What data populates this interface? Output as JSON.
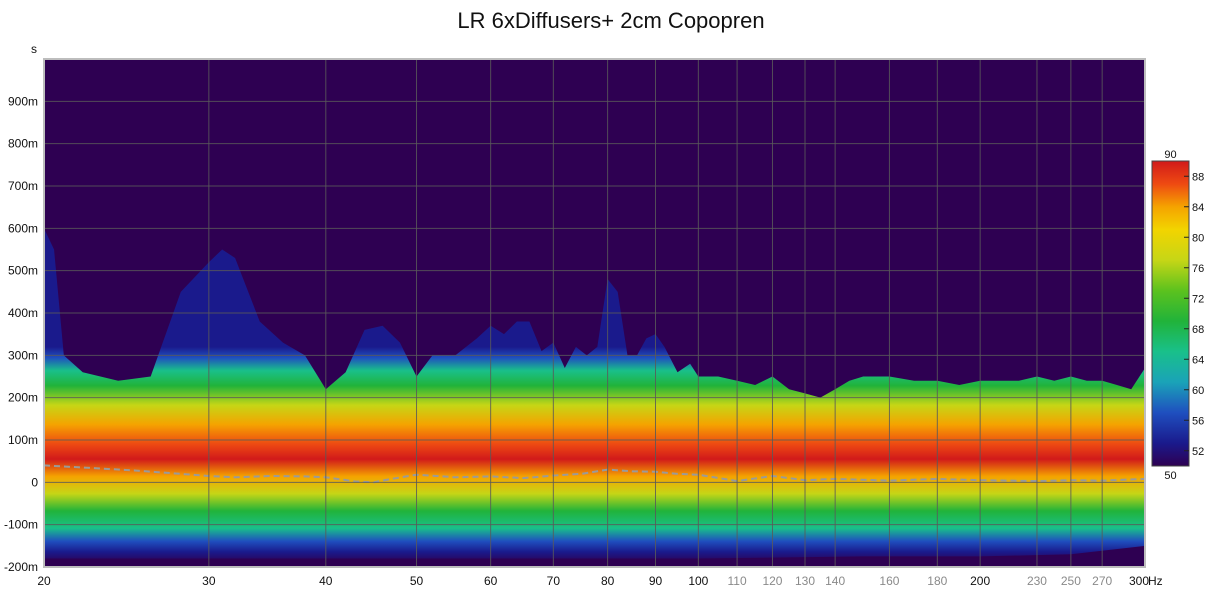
{
  "chart_data": {
    "type": "heatmap",
    "title": "LR 6xDiffusers+ 2cm Copopren",
    "y_unit": "s",
    "x_unit": "Hz",
    "x_scale": "log",
    "xlim": [
      20,
      300
    ],
    "ylim": [
      -0.2,
      1.0
    ],
    "x_ticks": [
      {
        "value": 20,
        "label": "20",
        "style": "major"
      },
      {
        "value": 30,
        "label": "30",
        "style": "major"
      },
      {
        "value": 40,
        "label": "40",
        "style": "major"
      },
      {
        "value": 50,
        "label": "50",
        "style": "major"
      },
      {
        "value": 60,
        "label": "60",
        "style": "major"
      },
      {
        "value": 70,
        "label": "70",
        "style": "major"
      },
      {
        "value": 80,
        "label": "80",
        "style": "major"
      },
      {
        "value": 90,
        "label": "90",
        "style": "major"
      },
      {
        "value": 100,
        "label": "100",
        "style": "major"
      },
      {
        "value": 110,
        "label": "110",
        "style": "minor"
      },
      {
        "value": 120,
        "label": "120",
        "style": "minor"
      },
      {
        "value": 130,
        "label": "130",
        "style": "minor"
      },
      {
        "value": 140,
        "label": "140",
        "style": "minor"
      },
      {
        "value": 160,
        "label": "160",
        "style": "minor"
      },
      {
        "value": 180,
        "label": "180",
        "style": "minor"
      },
      {
        "value": 200,
        "label": "200",
        "style": "major"
      },
      {
        "value": 230,
        "label": "230",
        "style": "minor"
      },
      {
        "value": 250,
        "label": "250",
        "style": "minor"
      },
      {
        "value": 270,
        "label": "270",
        "style": "minor"
      },
      {
        "value": 300,
        "label": "300",
        "style": "major"
      }
    ],
    "y_ticks": [
      {
        "value": 0.9,
        "label": "900m"
      },
      {
        "value": 0.8,
        "label": "800m"
      },
      {
        "value": 0.7,
        "label": "700m"
      },
      {
        "value": 0.6,
        "label": "600m"
      },
      {
        "value": 0.5,
        "label": "500m"
      },
      {
        "value": 0.4,
        "label": "400m"
      },
      {
        "value": 0.3,
        "label": "300m"
      },
      {
        "value": 0.2,
        "label": "200m"
      },
      {
        "value": 0.1,
        "label": "100m"
      },
      {
        "value": 0.0,
        "label": "0"
      },
      {
        "value": -0.1,
        "label": "-100m"
      },
      {
        "value": -0.2,
        "label": "-200m"
      }
    ],
    "grid": true,
    "background_color": "#2e0052",
    "colorbar": {
      "min": 50,
      "max": 90,
      "top_label": "90",
      "bottom_label": "50",
      "ticks": [
        88,
        84,
        80,
        76,
        72,
        68,
        64,
        60,
        56,
        52
      ],
      "stops": [
        {
          "value": 50,
          "color": "#2e0052"
        },
        {
          "value": 53,
          "color": "#1a1a8c"
        },
        {
          "value": 57,
          "color": "#1f4fbf"
        },
        {
          "value": 61,
          "color": "#1aa3b8"
        },
        {
          "value": 65,
          "color": "#19c08a"
        },
        {
          "value": 69,
          "color": "#21b33a"
        },
        {
          "value": 73,
          "color": "#5cc21e"
        },
        {
          "value": 77,
          "color": "#c6d616"
        },
        {
          "value": 81,
          "color": "#f2d400"
        },
        {
          "value": 84,
          "color": "#f5a300"
        },
        {
          "value": 87,
          "color": "#ee4a12"
        },
        {
          "value": 90,
          "color": "#d11a1a"
        }
      ]
    },
    "decay_envelope_top": {
      "x": [
        20,
        20.5,
        21,
        22,
        24,
        26,
        28,
        30,
        31,
        32,
        34,
        36,
        38,
        40,
        42,
        44,
        46,
        48,
        50,
        52,
        55,
        58,
        60,
        62,
        64,
        66,
        68,
        70,
        72,
        74,
        76,
        78,
        80,
        82,
        84,
        86,
        88,
        90,
        92,
        95,
        98,
        100,
        105,
        110,
        115,
        120,
        125,
        130,
        135,
        140,
        145,
        150,
        160,
        170,
        180,
        190,
        200,
        210,
        220,
        230,
        240,
        250,
        260,
        270,
        280,
        290,
        300
      ],
      "y": [
        0.6,
        0.55,
        0.3,
        0.26,
        0.24,
        0.25,
        0.45,
        0.52,
        0.55,
        0.53,
        0.38,
        0.33,
        0.3,
        0.22,
        0.26,
        0.36,
        0.37,
        0.33,
        0.25,
        0.3,
        0.3,
        0.34,
        0.37,
        0.35,
        0.38,
        0.38,
        0.31,
        0.33,
        0.27,
        0.32,
        0.3,
        0.32,
        0.48,
        0.45,
        0.3,
        0.3,
        0.34,
        0.35,
        0.32,
        0.26,
        0.28,
        0.25,
        0.25,
        0.24,
        0.23,
        0.25,
        0.22,
        0.21,
        0.2,
        0.22,
        0.24,
        0.25,
        0.25,
        0.24,
        0.24,
        0.23,
        0.24,
        0.24,
        0.24,
        0.25,
        0.24,
        0.25,
        0.24,
        0.24,
        0.23,
        0.22,
        0.27
      ]
    },
    "decay_envelope_bottom": {
      "x": [
        20,
        60,
        100,
        150,
        200,
        250,
        300
      ],
      "y": [
        -0.18,
        -0.18,
        -0.18,
        -0.175,
        -0.175,
        -0.17,
        -0.15
      ]
    },
    "peak_level_line": {
      "x": [
        20,
        22,
        25,
        28,
        30,
        32,
        35,
        38,
        40,
        43,
        45,
        47,
        50,
        55,
        60,
        65,
        70,
        75,
        80,
        85,
        90,
        95,
        100,
        110,
        120,
        130,
        140,
        160,
        180,
        200,
        230,
        250,
        270,
        300
      ],
      "y": [
        0.04,
        0.035,
        0.028,
        0.02,
        0.015,
        0.012,
        0.015,
        0.014,
        0.012,
        0.002,
        0.0,
        0.008,
        0.018,
        0.012,
        0.014,
        0.01,
        0.016,
        0.02,
        0.03,
        0.026,
        0.025,
        0.02,
        0.018,
        0.003,
        0.015,
        0.005,
        0.008,
        0.004,
        0.008,
        0.005,
        0.003,
        0.005,
        0.004,
        0.008
      ]
    }
  }
}
